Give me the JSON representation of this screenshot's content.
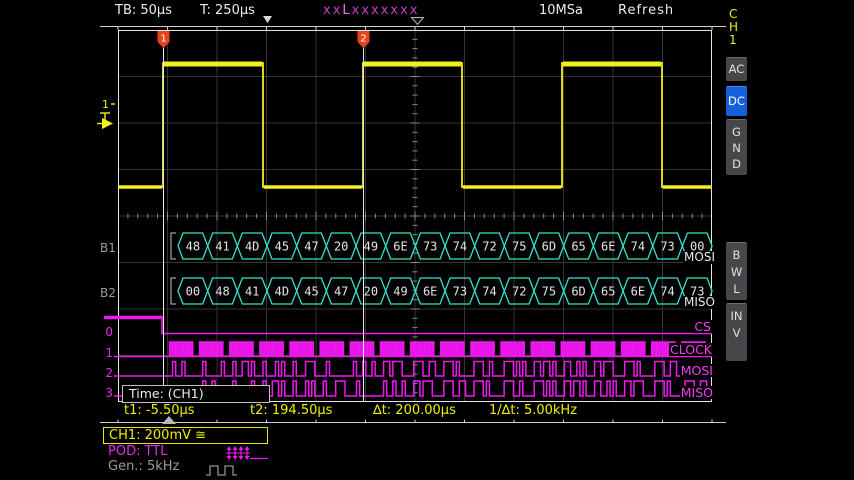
{
  "top_bar": {
    "timebase": "TB: 50µs",
    "trigger_time": "T: 250µs",
    "trigger_pattern": {
      "prefix": "xx",
      "active_bit": "L",
      "suffix": "xxxxxxx"
    },
    "sample_rate": "10MSa",
    "acq_mode": "Refresh"
  },
  "left_markers": {
    "ch1": "1",
    "bus1": "B1",
    "bus2": "B2",
    "pod_channels": [
      "0",
      "1",
      "2",
      "3"
    ]
  },
  "cursor_flags": [
    "1",
    "2"
  ],
  "bus1": {
    "label": "MOSI",
    "bytes": [
      "48",
      "41",
      "4D",
      "45",
      "47",
      "20",
      "49",
      "6E",
      "73",
      "74",
      "72",
      "75",
      "6D",
      "65",
      "6E",
      "74",
      "73",
      "00"
    ]
  },
  "bus2": {
    "label": "MISO",
    "bytes": [
      "00",
      "48",
      "41",
      "4D",
      "45",
      "47",
      "20",
      "49",
      "6E",
      "73",
      "74",
      "72",
      "75",
      "6D",
      "65",
      "6E",
      "74",
      "73"
    ]
  },
  "pod_labels": {
    "cs": "CS",
    "clock": "CLOCK",
    "mosi": "MOSI",
    "miso": "MISO"
  },
  "measurements": {
    "source": "Time: (CH1)",
    "t1": "t1: -5.50µs",
    "t2": "t2: 194.50µs",
    "delta_t": "∆t: 200.00µs",
    "inv_delta_t": "1/∆t: 5.00kHz"
  },
  "footer": {
    "ch1": "CH1: 200mV",
    "ch1_coupling": "≅",
    "pod": "POD: TTL",
    "gen": "Gen.: 5kHz"
  },
  "sidebar": {
    "channel": "CH1",
    "buttons": [
      {
        "label": "AC",
        "active": false
      },
      {
        "label": "DC",
        "active": true
      },
      {
        "label": "GND",
        "active": false
      },
      {
        "label": "BWL",
        "active": false
      },
      {
        "label": "INV",
        "active": false
      }
    ]
  },
  "colors": {
    "ch1_yellow": "#f2ef1d",
    "bus_cyan": "#35e2cc",
    "pod_magenta": "#f018f0",
    "flag_red": "#e8431a",
    "active_blue": "#1560d8",
    "measure_yellow": "#f0ee00"
  }
}
